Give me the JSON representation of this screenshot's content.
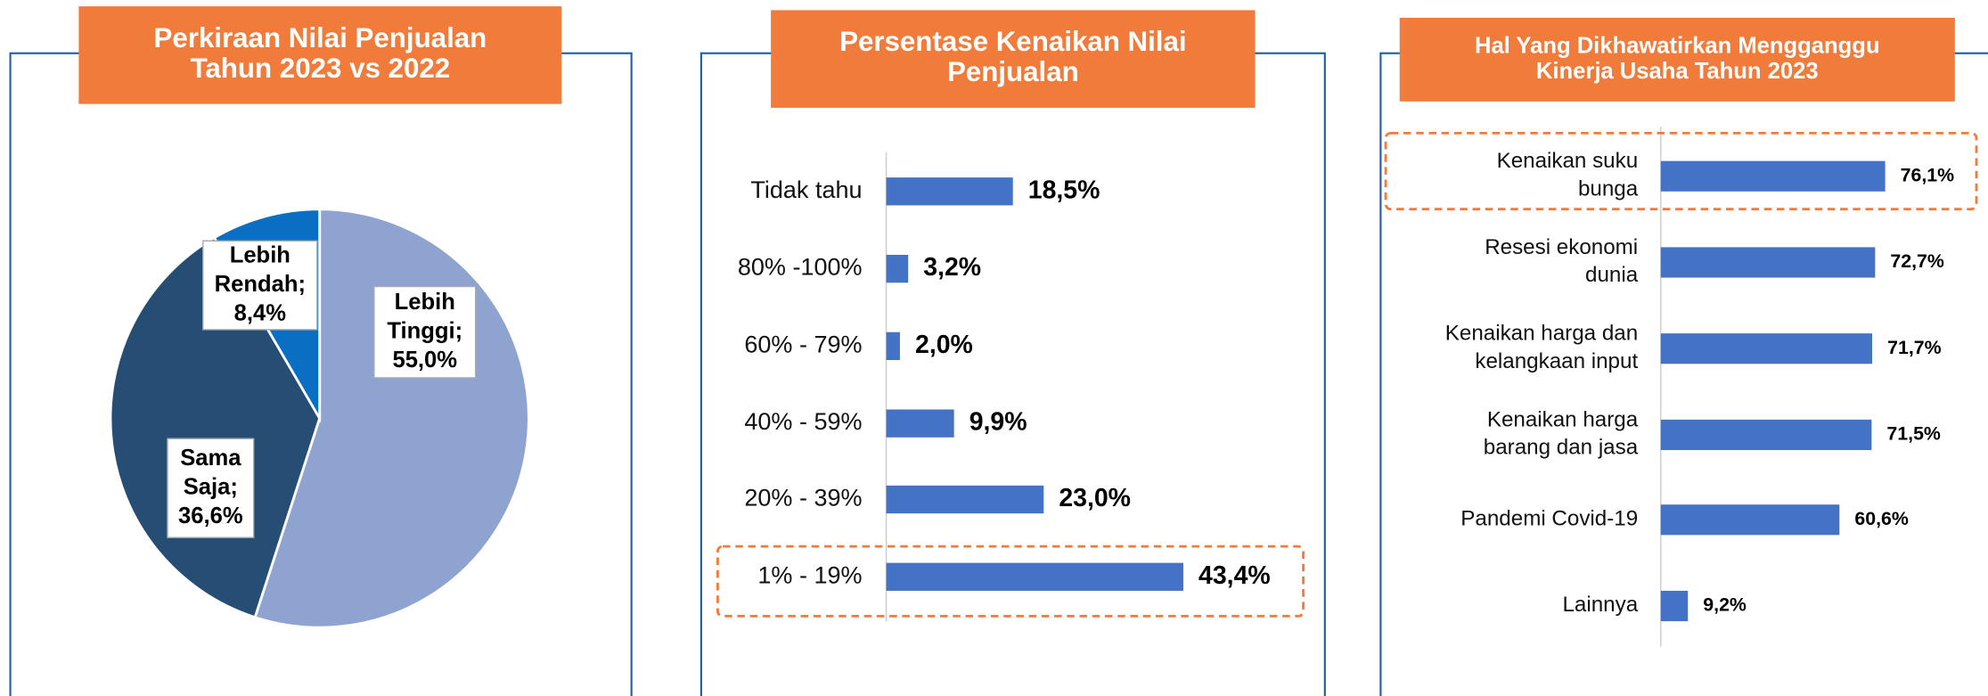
{
  "chart_data": [
    {
      "type": "pie",
      "title": "Perkiraan Nilai Penjualan\nTahun 2023 vs 2022",
      "categories": [
        "Lebih\nTinggi;",
        "Sama\nSaja;",
        "Lebih\nRendah;"
      ],
      "values": [
        55.0,
        36.6,
        8.4
      ],
      "value_labels": [
        "55,0%",
        "36,6%",
        "8,4%"
      ],
      "colors": [
        "#8fa3d1",
        "#264d73",
        "#0a6fc2"
      ]
    },
    {
      "type": "hbar",
      "title": "Persentase Kenaikan Nilai\nPenjualan",
      "categories": [
        "Tidak tahu",
        "80% -100%",
        "60% - 79%",
        "40% - 59%",
        "20% - 39%",
        "1% - 19%"
      ],
      "values": [
        18.5,
        3.2,
        2.0,
        9.9,
        23.0,
        43.4
      ],
      "value_labels": [
        "18,5%",
        "3,2%",
        "2,0%",
        "9,9%",
        "23,0%",
        "43,4%"
      ],
      "color": "#4472c4",
      "xlim": [
        0,
        50
      ],
      "highlight": 5
    },
    {
      "type": "hbar",
      "title": "Hal Yang Dikhawatirkan Mengganggu\nKinerja Usaha Tahun 2023",
      "categories": [
        "Kenaikan suku\nbunga",
        "Resesi ekonomi\ndunia",
        "Kenaikan harga dan\nkelangkaan input",
        "Kenaikan harga\nbarang dan jasa",
        "Pandemi Covid-19",
        "Lainnya"
      ],
      "values": [
        76.1,
        72.7,
        71.7,
        71.5,
        60.6,
        9.2
      ],
      "value_labels": [
        "76,1%",
        "72,7%",
        "71,7%",
        "71,5%",
        "60,6%",
        "9,2%"
      ],
      "color": "#4472c4",
      "xlim": [
        0,
        100
      ],
      "highlight": 0
    }
  ]
}
